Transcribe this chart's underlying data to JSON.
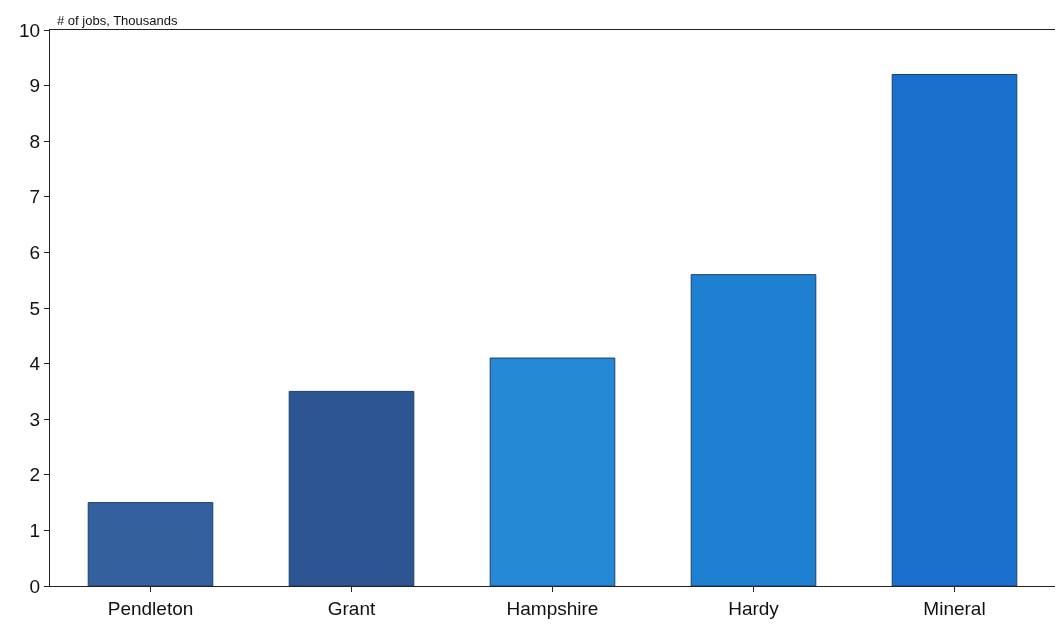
{
  "chart_data": {
    "type": "bar",
    "ylabel": "# of jobs, Thousands",
    "categories": [
      "Pendleton",
      "Grant",
      "Hampshire",
      "Hardy",
      "Mineral"
    ],
    "values": [
      1.5,
      3.5,
      4.1,
      5.6,
      9.2
    ],
    "colors": [
      "#34619e",
      "#2c5592",
      "#2589d6",
      "#1f7fd0",
      "#1a6fcc"
    ],
    "ylim": [
      0,
      10
    ],
    "yticks": [
      0,
      1,
      2,
      3,
      4,
      5,
      6,
      7,
      8,
      9,
      10
    ],
    "grid": false
  }
}
